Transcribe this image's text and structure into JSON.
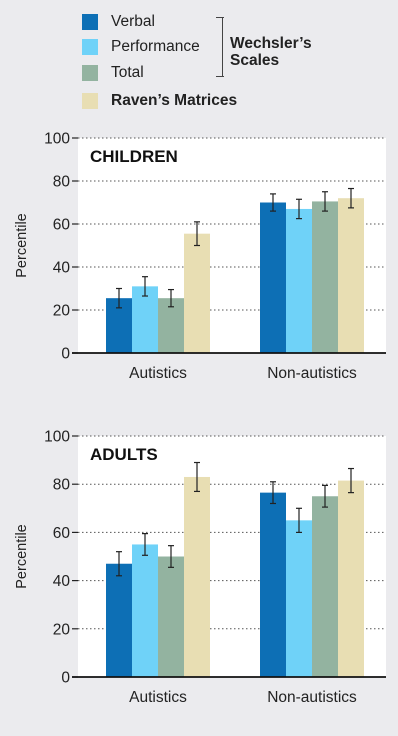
{
  "legend": {
    "items": [
      {
        "label": "Verbal",
        "color": "#0d6fb5"
      },
      {
        "label": "Performance",
        "color": "#6fd2f8"
      },
      {
        "label": "Total",
        "color": "#93b3a0"
      },
      {
        "label": "Raven’s Matrices",
        "color": "#e8deb3"
      }
    ],
    "bracket_label_line1": "Wechsler’s",
    "bracket_label_line2": "Scales"
  },
  "chart_data": [
    {
      "type": "bar",
      "title": "CHILDREN",
      "ylabel": "Percentile",
      "xlabel": "",
      "ylim": [
        0,
        100
      ],
      "yticks": [
        0,
        20,
        40,
        60,
        80,
        100
      ],
      "grid": true,
      "categories": [
        "Autistics",
        "Non-autistics"
      ],
      "series": [
        {
          "name": "Verbal",
          "values": [
            25.5,
            70
          ],
          "errors": [
            4.5,
            4
          ]
        },
        {
          "name": "Performance",
          "values": [
            31,
            67
          ],
          "errors": [
            4.5,
            4.5
          ]
        },
        {
          "name": "Total",
          "values": [
            25.5,
            70.5
          ],
          "errors": [
            4,
            4.5
          ]
        },
        {
          "name": "Raven’s Matrices",
          "values": [
            55.5,
            72
          ],
          "errors": [
            5.5,
            4.5
          ]
        }
      ]
    },
    {
      "type": "bar",
      "title": "ADULTS",
      "ylabel": "Percentile",
      "xlabel": "",
      "ylim": [
        0,
        100
      ],
      "yticks": [
        0,
        20,
        40,
        60,
        80,
        100
      ],
      "grid": true,
      "categories": [
        "Autistics",
        "Non-autistics"
      ],
      "series": [
        {
          "name": "Verbal",
          "values": [
            47,
            76.5
          ],
          "errors": [
            5,
            4.5
          ]
        },
        {
          "name": "Performance",
          "values": [
            55,
            65
          ],
          "errors": [
            4.5,
            5
          ]
        },
        {
          "name": "Total",
          "values": [
            50,
            75
          ],
          "errors": [
            4.5,
            4.5
          ]
        },
        {
          "name": "Raven’s Matrices",
          "values": [
            83,
            81.5
          ],
          "errors": [
            6,
            5
          ]
        }
      ]
    }
  ]
}
